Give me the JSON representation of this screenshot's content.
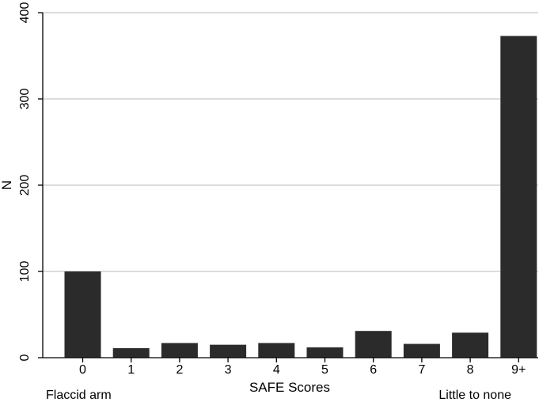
{
  "chart_data": {
    "type": "bar",
    "categories": [
      "0",
      "1",
      "2",
      "3",
      "4",
      "5",
      "6",
      "7",
      "8",
      "9+"
    ],
    "values": [
      100,
      11,
      17,
      15,
      17,
      12,
      31,
      16,
      29,
      373
    ],
    "title": "",
    "xlabel": "SAFE Scores",
    "ylabel": "N",
    "ylim": [
      0,
      400
    ],
    "yticks": [
      0,
      100,
      200,
      300,
      400
    ],
    "grid": true,
    "annotations": {
      "left": "Flaccid arm",
      "right": "Little to none"
    },
    "colors": {
      "bar": "#2b2b2b",
      "grid": "#c8c8c8",
      "axis": "#000000"
    }
  }
}
